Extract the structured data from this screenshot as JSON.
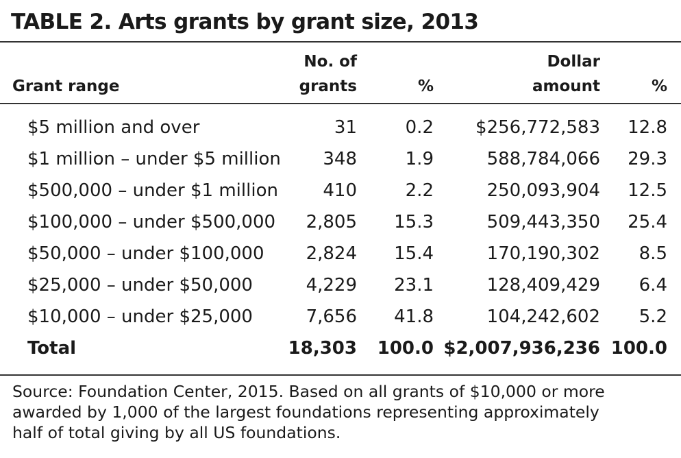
{
  "title": "TABLE 2. Arts grants by grant size, 2013",
  "headers": {
    "grant_range": "Grant range",
    "no_of_grants_line1": "No. of",
    "no_of_grants_line2": "grants",
    "pct1": "%",
    "dollar_line1": "Dollar",
    "dollar_line2": "amount",
    "pct2": "%"
  },
  "rows": [
    {
      "range": "$5 million and over",
      "grants": "31",
      "grants_pct": "0.2",
      "amount": "$256,772,583",
      "amount_pct": "12.8"
    },
    {
      "range": "$1 million – under $5 million",
      "grants": "348",
      "grants_pct": "1.9",
      "amount": "588,784,066",
      "amount_pct": "29.3"
    },
    {
      "range": "$500,000 – under $1 million",
      "grants": "410",
      "grants_pct": "2.2",
      "amount": "250,093,904",
      "amount_pct": "12.5"
    },
    {
      "range": "$100,000 – under $500,000",
      "grants": "2,805",
      "grants_pct": "15.3",
      "amount": "509,443,350",
      "amount_pct": "25.4"
    },
    {
      "range": "$50,000 – under $100,000",
      "grants": "2,824",
      "grants_pct": "15.4",
      "amount": "170,190,302",
      "amount_pct": "8.5"
    },
    {
      "range": "$25,000 – under $50,000",
      "grants": "4,229",
      "grants_pct": "23.1",
      "amount": "128,409,429",
      "amount_pct": "6.4"
    },
    {
      "range": "$10,000 – under $25,000",
      "grants": "7,656",
      "grants_pct": "41.8",
      "amount": "104,242,602",
      "amount_pct": "5.2"
    }
  ],
  "total": {
    "range": "Total",
    "grants": "18,303",
    "grants_pct": "100.0",
    "amount": "$2,007,936,236",
    "amount_pct": "100.0"
  },
  "source": {
    "line1": "Source: Foundation Center, 2015. Based on all grants of $10,000 or more",
    "line2": "awarded by 1,000 of the largest foundations representing approximately",
    "line3": "half of total giving by all US foundations."
  }
}
